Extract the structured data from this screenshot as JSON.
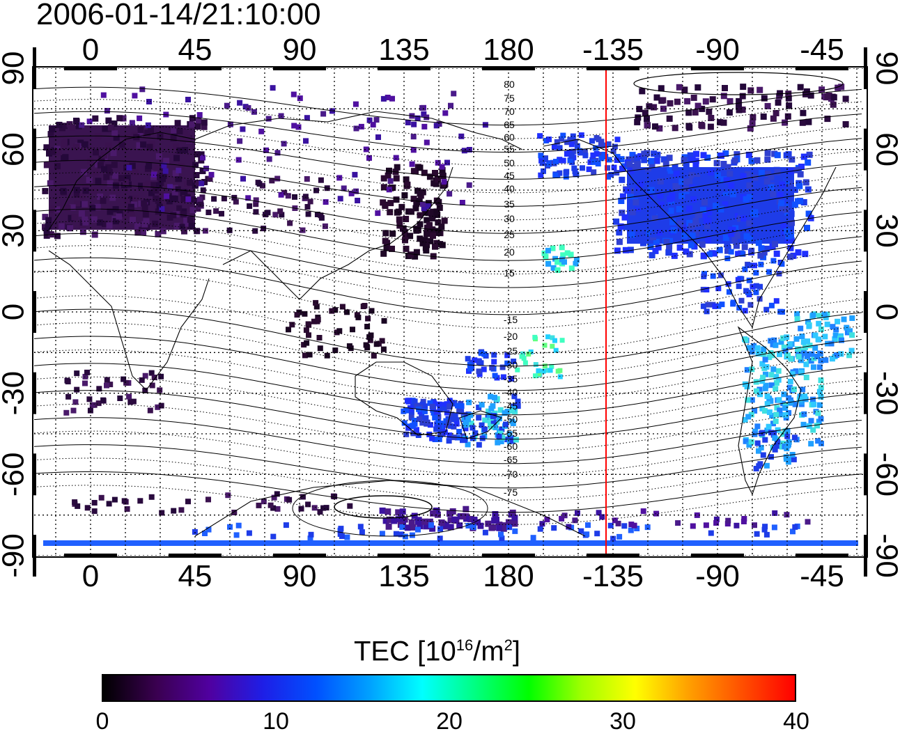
{
  "title": "2006-01-14/21:10:00",
  "map": {
    "lon_tick_labels": [
      "0",
      "45",
      "90",
      "135",
      "180",
      "-135",
      "-90",
      "-45"
    ],
    "lat_tick_labels": [
      "90",
      "60",
      "30",
      "0",
      "-30",
      "-60",
      "-90"
    ],
    "contour_labels_north": [
      "80",
      "75",
      "70",
      "65",
      "60",
      "55",
      "50",
      "45",
      "40",
      "35",
      "30",
      "25",
      "20",
      "15"
    ],
    "contour_labels_south": [
      "-15",
      "-20",
      "-25",
      "-30",
      "-35",
      "-40",
      "-45",
      "-50",
      "-55",
      "-60",
      "-65",
      "-70",
      "-75"
    ],
    "terminator_longitude": -137,
    "colors": {
      "terminator": "#ff0000",
      "coastline": "#000000"
    }
  },
  "colorbar": {
    "title_prefix": "TEC  [10",
    "title_sup1": "16",
    "title_mid": "/m",
    "title_sup2": "2",
    "title_suffix": "]",
    "tick_labels": [
      "0",
      "10",
      "20",
      "30",
      "40"
    ],
    "range": [
      0,
      40
    ],
    "colormap": [
      "#000000",
      "#3a0050",
      "#5000a0",
      "#1e1ee6",
      "#0050ff",
      "#00a0ff",
      "#00ffff",
      "#00ff80",
      "#00ff00",
      "#a0ff00",
      "#ffff00",
      "#ffa000",
      "#ff5000",
      "#ff0000"
    ]
  }
}
